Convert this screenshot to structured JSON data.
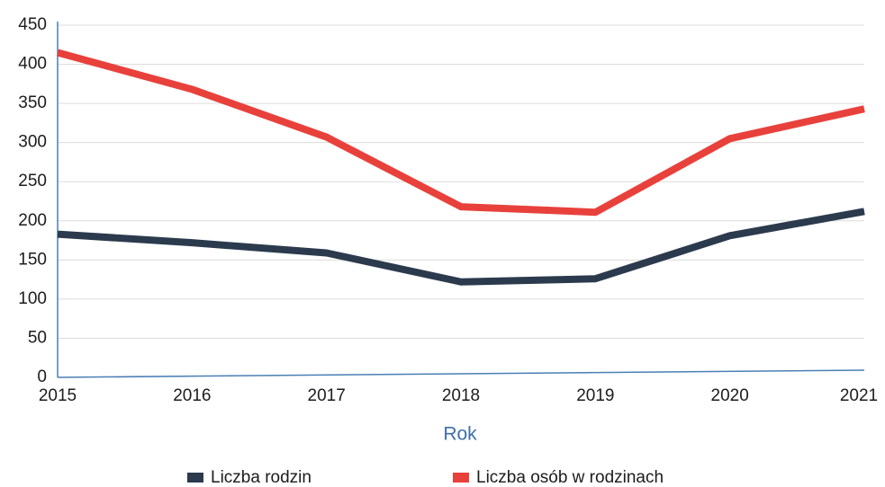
{
  "chart_data": {
    "type": "line",
    "x": [
      2015,
      2016,
      2017,
      2018,
      2019,
      2020,
      2021
    ],
    "xlim": [
      2015,
      2021
    ],
    "xticks": [
      2015,
      2016,
      2017,
      2018,
      2019,
      2020,
      2021
    ],
    "xlabel": "Rok",
    "ylim": [
      0,
      450
    ],
    "yticks": [
      0,
      50,
      100,
      150,
      200,
      250,
      300,
      350,
      400,
      450
    ],
    "grid": true,
    "legend": "bottom",
    "series": [
      {
        "name": "Liczba rodzin",
        "color": "#2b3a4d",
        "values": [
          183,
          172,
          159,
          122,
          126,
          181,
          212
        ]
      },
      {
        "name": "Liczba osób w rodzinach",
        "color": "#e8413c",
        "values": [
          415,
          368,
          307,
          218,
          211,
          305,
          343
        ]
      }
    ]
  }
}
